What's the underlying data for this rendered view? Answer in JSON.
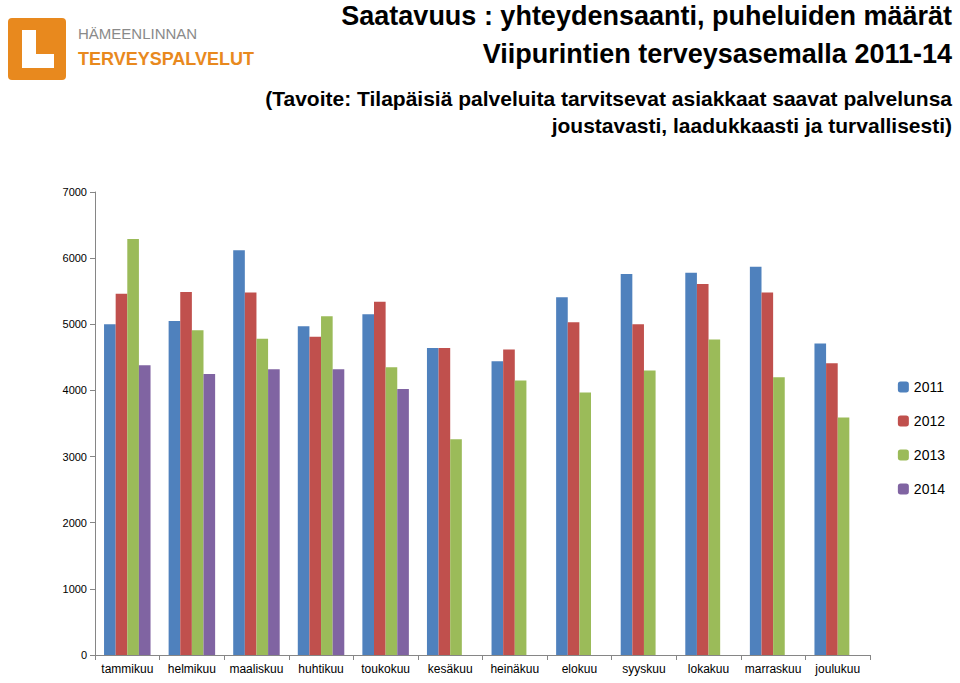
{
  "chart_data": {
    "type": "bar",
    "title": "Saatavuus : yhteydensaanti, puheluiden määrät\nViipurintien terveysasemalla 2011-14",
    "subtitle": "(Tavoite: Tilapäisiä palveluita tarvitsevat asiakkaat saavat palvelunsa\njoustavasti, laadukkaasti ja turvallisesti)",
    "annotations": [
      "HÄMEENLINNAN",
      "TERVEYSPALVELUT"
    ],
    "categories": [
      "tammikuu",
      "helmikuu",
      "maaliskuu",
      "huhtikuu",
      "toukokuu",
      "kesäkuu",
      "heinäkuu",
      "elokuu",
      "syyskuu",
      "lokakuu",
      "marraskuu",
      "joulukuu"
    ],
    "series": [
      {
        "name": "2011",
        "color": "#4F81BD",
        "values": [
          5000,
          5050,
          6120,
          4970,
          5150,
          4640,
          4440,
          5410,
          5760,
          5780,
          5870,
          4710
        ]
      },
      {
        "name": "2012",
        "color": "#C0504D",
        "values": [
          5460,
          5490,
          5480,
          4810,
          5340,
          4640,
          4620,
          5030,
          5000,
          5610,
          5480,
          4410
        ]
      },
      {
        "name": "2013",
        "color": "#9BBB59",
        "values": [
          6290,
          4910,
          4780,
          5120,
          4350,
          3260,
          4150,
          3970,
          4300,
          4770,
          4200,
          3590
        ]
      },
      {
        "name": "2014",
        "color": "#8064A2",
        "values": [
          4380,
          4250,
          4320,
          4320,
          4020,
          null,
          null,
          null,
          null,
          null,
          null,
          null
        ]
      }
    ],
    "ylim": [
      0,
      7000
    ],
    "yticks": [
      0,
      1000,
      2000,
      3000,
      4000,
      5000,
      6000,
      7000
    ],
    "grid": false,
    "legend": "right"
  }
}
